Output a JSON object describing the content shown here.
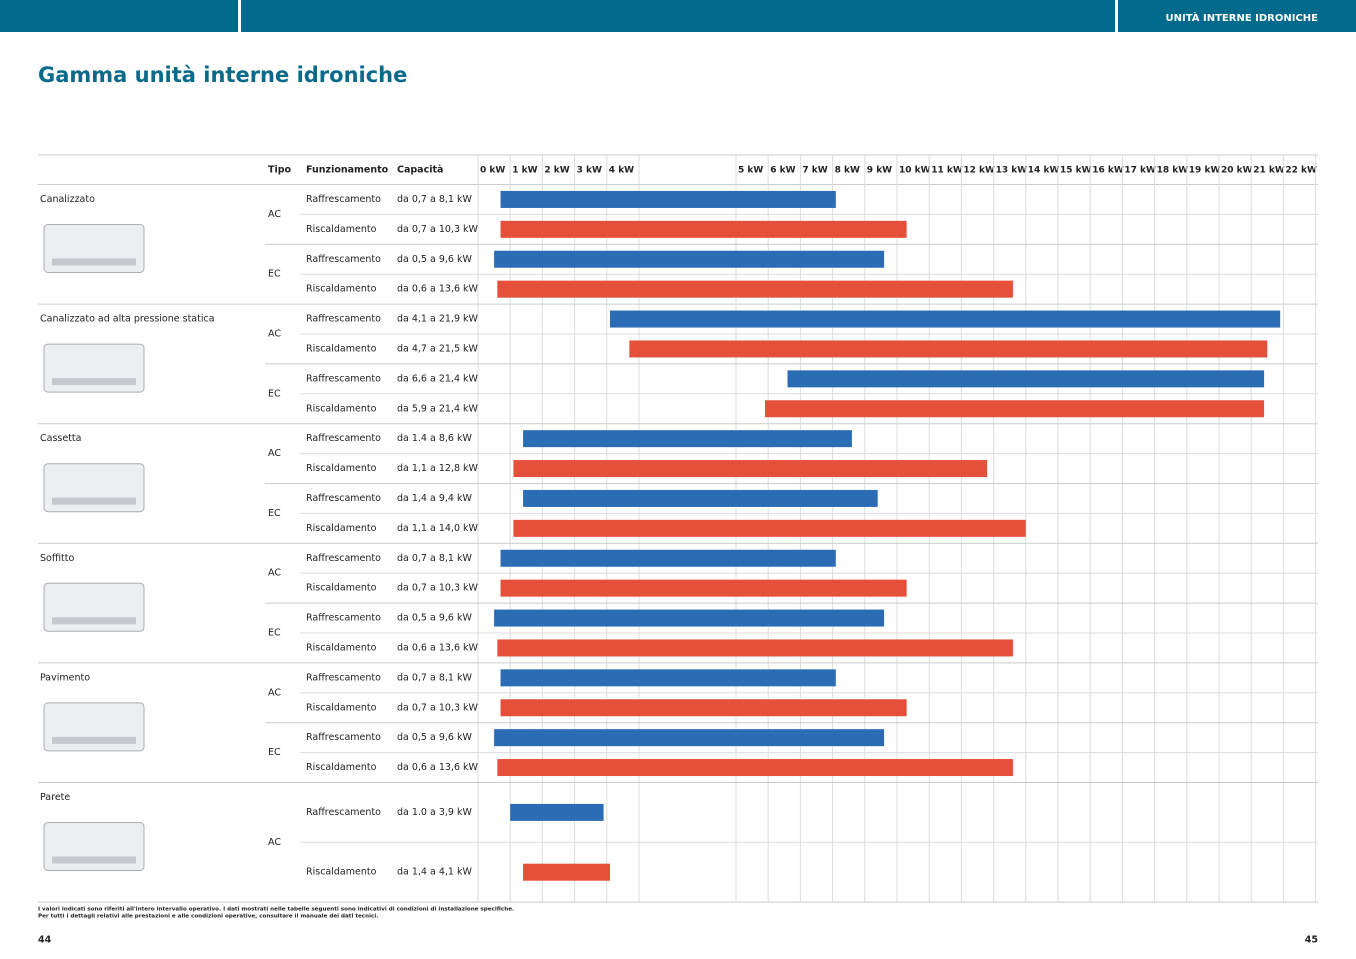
{
  "header": {
    "section": "UNITÀ INTERNE IDRONICHE"
  },
  "title": "Gamma unità interne idroniche",
  "table": {
    "columns": [
      "Tipo",
      "Funzionamento",
      "Capacità"
    ],
    "scale_ticks": [
      {
        "value": 0,
        "label": "0 kW"
      },
      {
        "value": 1,
        "label": "1 kW"
      },
      {
        "value": 2,
        "label": "2 kW"
      },
      {
        "value": 3,
        "label": "3 kW"
      },
      {
        "value": 4,
        "label": "4 kW"
      },
      {
        "value": 5,
        "label": "5 kW"
      },
      {
        "value": 6,
        "label": "6 kW"
      },
      {
        "value": 7,
        "label": "7 kW"
      },
      {
        "value": 8,
        "label": "8 kW"
      },
      {
        "value": 9,
        "label": "9 kW"
      },
      {
        "value": 10,
        "label": "10 kW"
      },
      {
        "value": 11,
        "label": "11 kW"
      },
      {
        "value": 12,
        "label": "12 kW"
      },
      {
        "value": 13,
        "label": "13 kW"
      },
      {
        "value": 14,
        "label": "14 kW"
      },
      {
        "value": 15,
        "label": "15 kW"
      },
      {
        "value": 16,
        "label": "16 kW"
      },
      {
        "value": 17,
        "label": "17 kW"
      },
      {
        "value": 18,
        "label": "18 kW"
      },
      {
        "value": 19,
        "label": "19 kW"
      },
      {
        "value": 20,
        "label": "20 kW"
      },
      {
        "value": 21,
        "label": "21 kW"
      },
      {
        "value": 22,
        "label": "22 kW"
      }
    ],
    "groups": [
      {
        "name": "Canalizzato",
        "types": [
          {
            "tipo": "AC",
            "rows": [
              {
                "function": "Raffrescamento",
                "capacity": "da 0,7 a 8,1 kW",
                "low": 0.7,
                "high": 8.1,
                "color": "#2b6db5"
              },
              {
                "function": "Riscaldamento",
                "capacity": "da 0,7 a 10,3 kW",
                "low": 0.7,
                "high": 10.3,
                "color": "#e5503a"
              }
            ]
          },
          {
            "tipo": "EC",
            "rows": [
              {
                "function": "Raffrescamento",
                "capacity": "da 0,5 a 9,6 kW",
                "low": 0.5,
                "high": 9.6,
                "color": "#2b6db5"
              },
              {
                "function": "Riscaldamento",
                "capacity": "da 0,6 a 13,6 kW",
                "low": 0.6,
                "high": 13.6,
                "color": "#e5503a"
              }
            ]
          }
        ]
      },
      {
        "name": "Canalizzato ad alta pressione statica",
        "types": [
          {
            "tipo": "AC",
            "rows": [
              {
                "function": "Raffrescamento",
                "capacity": "da 4,1 a 21,9 kW",
                "low": 4.1,
                "high": 21.9,
                "color": "#2b6db5"
              },
              {
                "function": "Riscaldamento",
                "capacity": "da 4,7 a 21,5 kW",
                "low": 4.7,
                "high": 21.5,
                "color": "#e5503a"
              }
            ]
          },
          {
            "tipo": "EC",
            "rows": [
              {
                "function": "Raffrescamento",
                "capacity": "da 6,6 a 21,4 kW",
                "low": 6.6,
                "high": 21.4,
                "color": "#2b6db5"
              },
              {
                "function": "Riscaldamento",
                "capacity": "da 5,9 a 21,4 kW",
                "low": 5.9,
                "high": 21.4,
                "color": "#e5503a"
              }
            ]
          }
        ]
      },
      {
        "name": "Cassetta",
        "types": [
          {
            "tipo": "AC",
            "rows": [
              {
                "function": "Raffrescamento",
                "capacity": "da 1.4 a 8,6 kW",
                "low": 1.4,
                "high": 8.6,
                "color": "#2b6db5"
              },
              {
                "function": "Riscaldamento",
                "capacity": "da 1,1 a 12,8 kW",
                "low": 1.1,
                "high": 12.8,
                "color": "#e5503a"
              }
            ]
          },
          {
            "tipo": "EC",
            "rows": [
              {
                "function": "Raffrescamento",
                "capacity": "da 1,4 a 9,4 kW",
                "low": 1.4,
                "high": 9.4,
                "color": "#2b6db5"
              },
              {
                "function": "Riscaldamento",
                "capacity": "da 1,1 a 14,0 kW",
                "low": 1.1,
                "high": 14.0,
                "color": "#e5503a"
              }
            ]
          }
        ]
      },
      {
        "name": "Soffitto",
        "types": [
          {
            "tipo": "AC",
            "rows": [
              {
                "function": "Raffrescamento",
                "capacity": "da 0,7 a 8,1 kW",
                "low": 0.7,
                "high": 8.1,
                "color": "#2b6db5"
              },
              {
                "function": "Riscaldamento",
                "capacity": "da 0,7 a 10,3 kW",
                "low": 0.7,
                "high": 10.3,
                "color": "#e5503a"
              }
            ]
          },
          {
            "tipo": "EC",
            "rows": [
              {
                "function": "Raffrescamento",
                "capacity": "da 0,5 a 9,6 kW",
                "low": 0.5,
                "high": 9.6,
                "color": "#2b6db5"
              },
              {
                "function": "Riscaldamento",
                "capacity": "da 0,6 a 13,6 kW",
                "low": 0.6,
                "high": 13.6,
                "color": "#e5503a"
              }
            ]
          }
        ]
      },
      {
        "name": "Pavimento",
        "types": [
          {
            "tipo": "AC",
            "rows": [
              {
                "function": "Raffrescamento",
                "capacity": "da 0,7 a 8,1 kW",
                "low": 0.7,
                "high": 8.1,
                "color": "#2b6db5"
              },
              {
                "function": "Riscaldamento",
                "capacity": "da 0,7 a 10,3 kW",
                "low": 0.7,
                "high": 10.3,
                "color": "#e5503a"
              }
            ]
          },
          {
            "tipo": "EC",
            "rows": [
              {
                "function": "Raffrescamento",
                "capacity": "da 0,5 a 9,6 kW",
                "low": 0.5,
                "high": 9.6,
                "color": "#2b6db5"
              },
              {
                "function": "Riscaldamento",
                "capacity": "da 0,6 a 13,6 kW",
                "low": 0.6,
                "high": 13.6,
                "color": "#e5503a"
              }
            ]
          }
        ]
      },
      {
        "name": "Parete",
        "types": [
          {
            "tipo": "AC",
            "rows": [
              {
                "function": "Raffrescamento",
                "capacity": "da 1.0 a 3,9 kW",
                "low": 1.0,
                "high": 3.9,
                "color": "#2b6db5"
              },
              {
                "function": "Riscaldamento",
                "capacity": "da 1,4 a 4,1 kW",
                "low": 1.4,
                "high": 4.1,
                "color": "#e5503a"
              }
            ]
          }
        ]
      }
    ]
  },
  "notes": [
    "I valori indicati sono riferiti all'intero intervallo operativo. I dati mostrati nelle tabelle seguenti sono indicativi di condizioni di installazione specifiche.",
    "Per tutti i dettagli relativi alle prestazioni e alle condizioni operative, consultare il manuale dei dati tecnici."
  ],
  "pages": [
    "44",
    "45"
  ]
}
